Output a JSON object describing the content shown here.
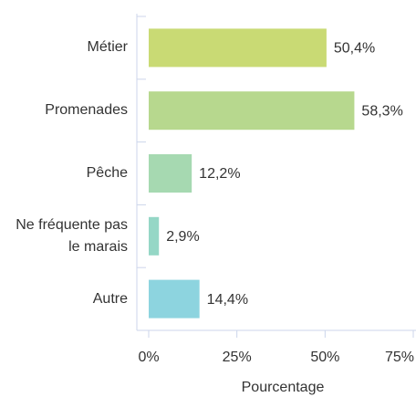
{
  "chart_data": {
    "type": "bar",
    "orientation": "horizontal",
    "categories": [
      "Métier",
      "Promenades",
      "Pêche",
      "Ne fréquente pas le marais",
      "Autre"
    ],
    "values": [
      50.4,
      58.3,
      12.2,
      2.9,
      14.4
    ],
    "value_labels": [
      "50,4%",
      "58,3%",
      "12,2%",
      "2,9%",
      "14,4%"
    ],
    "colors": [
      "#c9da74",
      "#b7d88e",
      "#a6d9b1",
      "#95d7c6",
      "#8dd4df"
    ],
    "xlabel": "Pourcentage",
    "xlim": [
      0,
      75
    ],
    "xticks": [
      {
        "value": 0,
        "label": "0%"
      },
      {
        "value": 25,
        "label": "25%"
      },
      {
        "value": 50,
        "label": "50%"
      },
      {
        "value": 75,
        "label": "75%"
      }
    ]
  }
}
